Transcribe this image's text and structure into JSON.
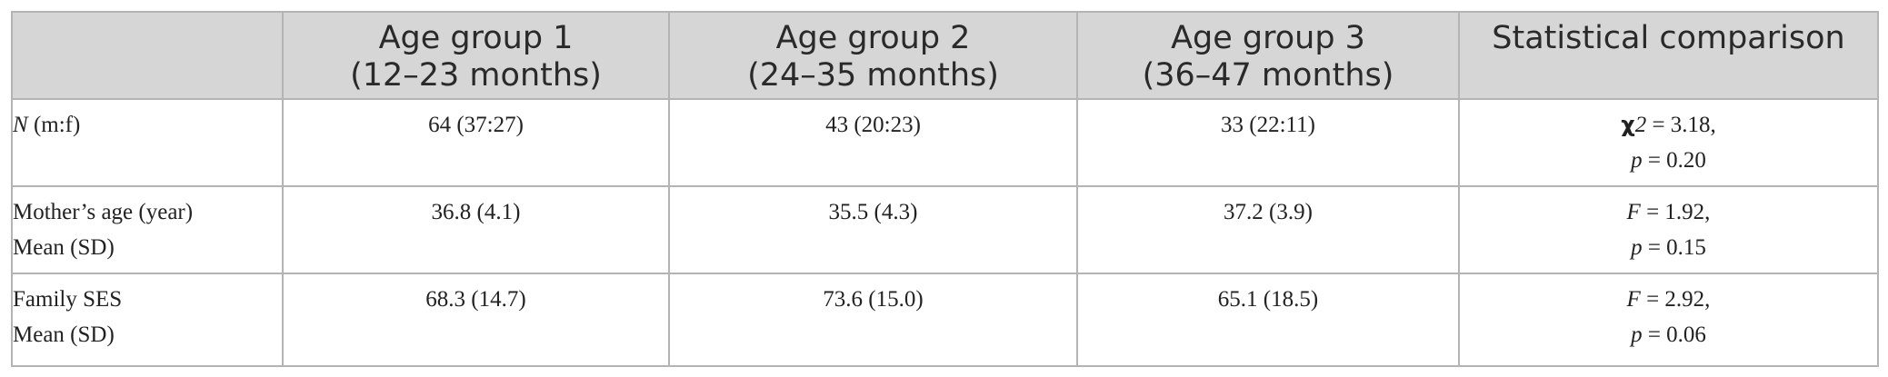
{
  "table": {
    "headers": {
      "blank": "",
      "group1": [
        "Age group 1",
        "(12–23 months)"
      ],
      "group2": [
        "Age group 2",
        "(24–35 months)"
      ],
      "group3": [
        "Age group 3",
        "(36–47 months)"
      ],
      "comparison": "Statistical comparison"
    },
    "rows": [
      {
        "label_italic": "N",
        "label_rest": " (m:f)",
        "group1": "64 (37:27)",
        "group2": "43 (20:23)",
        "group3": "33 (22:11)",
        "stat": {
          "symbol": "χ",
          "symbol_sup": "2",
          "line1_rest": " = 3.18,",
          "p_symbol": "p",
          "p_rest": " = 0.20"
        }
      },
      {
        "label_lines": [
          "Mother’s age (year)",
          "Mean (SD)"
        ],
        "group1": "36.8 (4.1)",
        "group2": "35.5 (4.3)",
        "group3": "37.2 (3.9)",
        "stat": {
          "symbol": "F",
          "line1_rest": " = 1.92,",
          "p_symbol": "p",
          "p_rest": " = 0.15"
        }
      },
      {
        "label_lines": [
          "Family SES",
          "Mean (SD)"
        ],
        "group1": "68.3 (14.7)",
        "group2": "73.6 (15.0)",
        "group3": "65.1 (18.5)",
        "stat": {
          "symbol": "F",
          "line1_rest": " = 2.92,",
          "p_symbol": "p",
          "p_rest": " = 0.06"
        }
      }
    ]
  }
}
